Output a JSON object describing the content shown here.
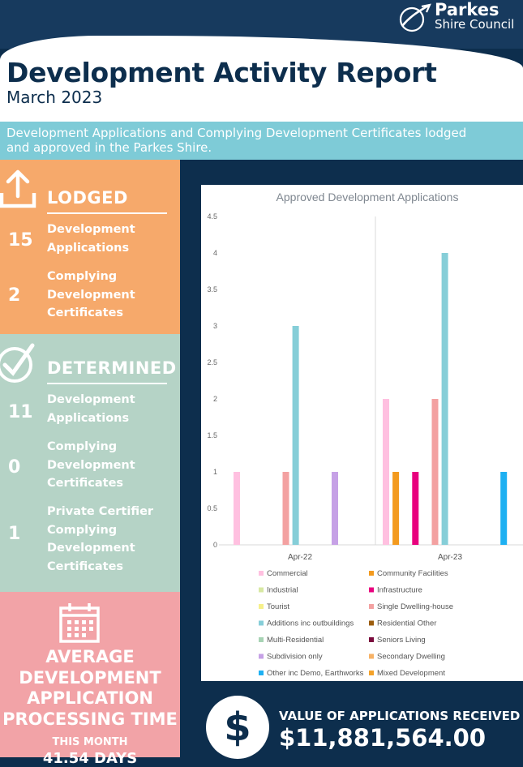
{
  "header": {
    "logo_name": "Parkes",
    "logo_sub": "Shire Council",
    "title": "Development Activity Report",
    "month": "March 2023",
    "intro": "Development Applications and Complying Development Certificates lodged and approved in the Parkes Shire."
  },
  "lodged": {
    "heading": "LODGED",
    "stats": [
      {
        "value": "15",
        "label": "Development Applications"
      },
      {
        "value": "2",
        "label": "Complying Development Certificates"
      }
    ]
  },
  "determined": {
    "heading": "DETERMINED",
    "stats": [
      {
        "value": "11",
        "label": "Development Applications"
      },
      {
        "value": "0",
        "label": "Complying Development Certificates"
      },
      {
        "value": "1",
        "label": "Private Certifier Complying Development Certificates"
      }
    ]
  },
  "average": {
    "heading": "AVERAGE DEVELOPMENT APPLICATION PROCESSING TIME",
    "sub": "THIS MONTH",
    "value": "41.54 DAYS"
  },
  "value_received": {
    "symbol": "$",
    "label": "VALUE OF APPLICATIONS RECEIVED",
    "amount": "$11,881,564.00"
  },
  "colors": {
    "navy": "#0d2e4d",
    "orange": "#f6a96b",
    "sage": "#b5d3c6",
    "pink": "#f2a3a7",
    "teal": "#7ecbd7"
  },
  "chart_data": {
    "type": "bar",
    "title": "Approved Development Applications",
    "categories": [
      "Apr-22",
      "Apr-23"
    ],
    "yticks": [
      "0",
      "0.5",
      "1",
      "1.5",
      "2",
      "2.5",
      "3",
      "3.5",
      "4",
      "4.5"
    ],
    "ylim": [
      0,
      4.5
    ],
    "grid": false,
    "legend_position": "bottom",
    "series": [
      {
        "name": "Commercial",
        "color": "#ffc0e0",
        "values": [
          1,
          2
        ]
      },
      {
        "name": "Community Facilities",
        "color": "#f39a1e",
        "values": [
          0,
          1
        ]
      },
      {
        "name": "Industrial",
        "color": "#d7e8a2",
        "values": [
          0,
          0
        ]
      },
      {
        "name": "Infrastructure",
        "color": "#e8007e",
        "values": [
          0,
          1
        ]
      },
      {
        "name": "Tourist",
        "color": "#f6f08a",
        "values": [
          0,
          0
        ]
      },
      {
        "name": "Single Dwelling-house",
        "color": "#f3a1a1",
        "values": [
          1,
          2
        ]
      },
      {
        "name": "Additions inc outbuildings",
        "color": "#86ced8",
        "values": [
          3,
          4
        ]
      },
      {
        "name": "Residential Other",
        "color": "#9c5d0e",
        "values": [
          0,
          0
        ]
      },
      {
        "name": "Multi-Residential",
        "color": "#a7d3b4",
        "values": [
          0,
          0
        ]
      },
      {
        "name": "Seniors Living",
        "color": "#7a0a3c",
        "values": [
          0,
          0
        ]
      },
      {
        "name": "Subdivision only",
        "color": "#c6a1e6",
        "values": [
          1,
          0
        ]
      },
      {
        "name": "Secondary Dwelling",
        "color": "#f7b266",
        "values": [
          0,
          0
        ]
      },
      {
        "name": "Other inc Demo, Earthworks",
        "color": "#1eb0f2",
        "values": [
          0,
          1
        ]
      },
      {
        "name": "Mixed Development",
        "color": "#f4a229",
        "values": [
          0,
          0
        ]
      }
    ]
  }
}
